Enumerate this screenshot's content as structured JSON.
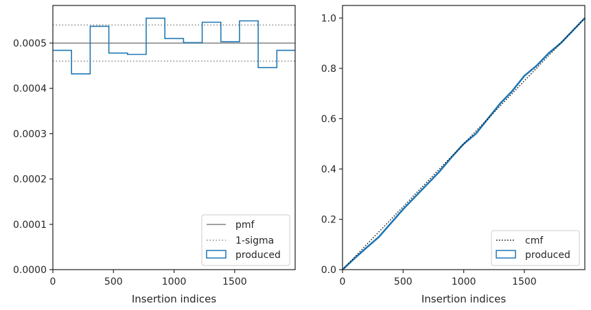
{
  "chart_data": [
    {
      "type": "line",
      "subtype": "step-histogram",
      "xlabel": "Insertion indices",
      "ylabel": "",
      "xlim": [
        0,
        1999
      ],
      "ylim": [
        0,
        0.000583
      ],
      "x_ticks": [
        0,
        500,
        1000,
        1500
      ],
      "x_tick_labels": [
        "0",
        "500",
        "1000",
        "1500"
      ],
      "y_ticks": [
        0,
        0.0001,
        0.0002,
        0.0003,
        0.0004,
        0.0005
      ],
      "y_tick_labels": [
        "0.0000",
        "0.0001",
        "0.0002",
        "0.0003",
        "0.0004",
        "0.0005"
      ],
      "grid": false,
      "legend_position": "bottom-right",
      "legend": [
        {
          "label": "pmf",
          "style": "solid",
          "color": "#808080"
        },
        {
          "label": "1-sigma",
          "style": "dotted",
          "color": "#808080"
        },
        {
          "label": "produced",
          "style": "box",
          "color": "#1f77b4"
        }
      ],
      "pmf": 0.0005,
      "sigma_band": [
        0.00046,
        0.00054
      ],
      "produced": {
        "bin_edges": [
          0,
          154,
          308,
          462,
          616,
          770,
          924,
          1078,
          1232,
          1386,
          1540,
          1694,
          1848,
          1999
        ],
        "values": [
          0.000484,
          0.000432,
          0.000537,
          0.000478,
          0.000475,
          0.000555,
          0.00051,
          0.000501,
          0.000546,
          0.000503,
          0.000549,
          0.000446,
          0.000484
        ]
      }
    },
    {
      "type": "line",
      "xlabel": "Insertion indices",
      "ylabel": "",
      "xlim": [
        0,
        1999
      ],
      "ylim": [
        0,
        1.05
      ],
      "x_ticks": [
        0,
        500,
        1000,
        1500
      ],
      "x_tick_labels": [
        "0",
        "500",
        "1000",
        "1500"
      ],
      "y_ticks": [
        0,
        0.2,
        0.4,
        0.6,
        0.8,
        1.0
      ],
      "y_tick_labels": [
        "0.0",
        "0.2",
        "0.4",
        "0.6",
        "0.8",
        "1.0"
      ],
      "grid": false,
      "legend_position": "bottom-right",
      "legend": [
        {
          "label": "cmf",
          "style": "dotted",
          "color": "#000000"
        },
        {
          "label": "produced",
          "style": "box",
          "color": "#1f77b4"
        }
      ],
      "cmf": {
        "x": [
          0,
          1999
        ],
        "y": [
          0,
          1.0
        ]
      },
      "produced": {
        "x": [
          0,
          100,
          200,
          300,
          400,
          500,
          600,
          700,
          800,
          900,
          1000,
          1100,
          1200,
          1300,
          1400,
          1500,
          1600,
          1700,
          1800,
          1900,
          1999
        ],
        "y": [
          0.0,
          0.045,
          0.088,
          0.13,
          0.185,
          0.24,
          0.29,
          0.34,
          0.39,
          0.447,
          0.5,
          0.54,
          0.6,
          0.66,
          0.71,
          0.77,
          0.81,
          0.86,
          0.9,
          0.95,
          1.0
        ]
      }
    }
  ]
}
